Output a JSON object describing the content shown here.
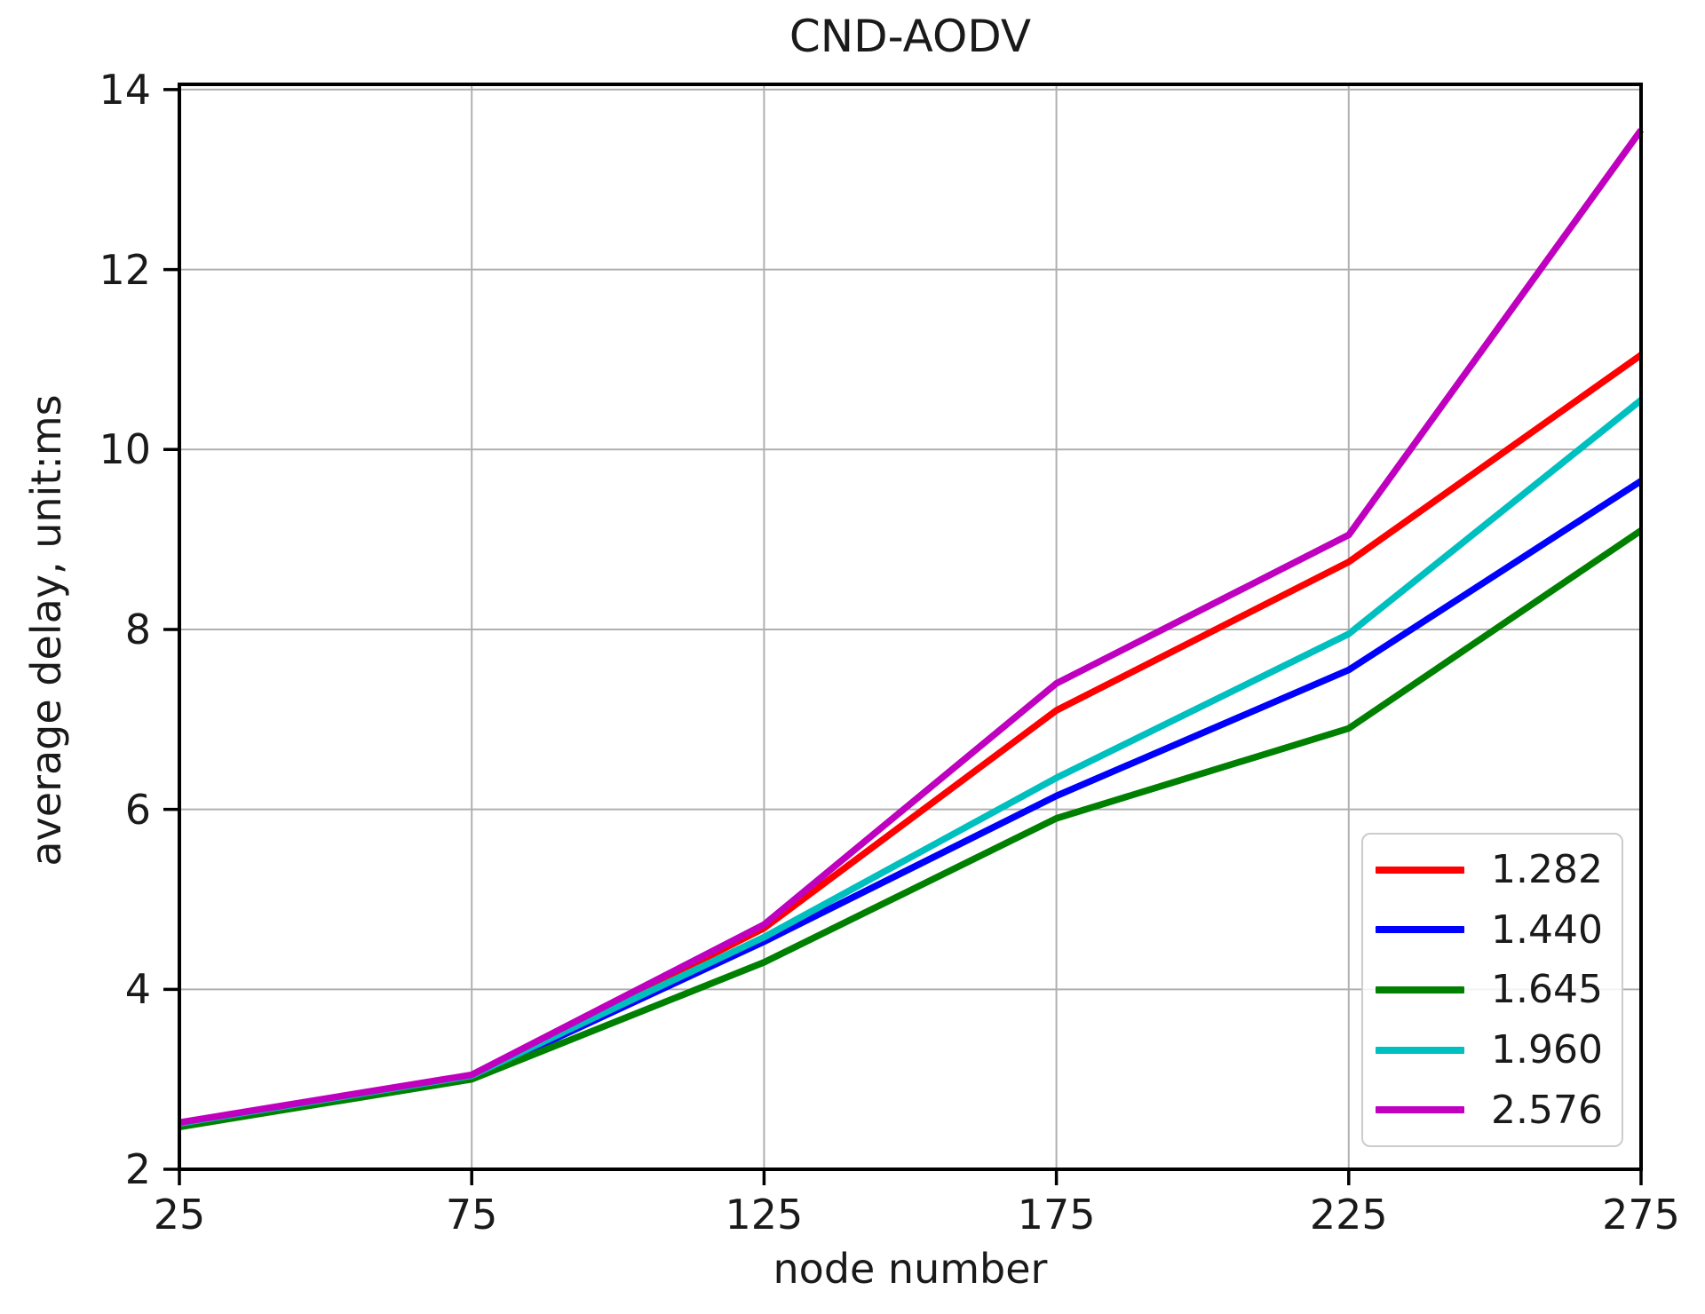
{
  "title": "CND-AODV",
  "axes": {
    "xlabel": "node number",
    "ylabel": "average delay, unit:ms",
    "xlim": [
      25,
      275
    ],
    "ylim": [
      2,
      14.058
    ],
    "xticks": [
      25,
      75,
      125,
      175,
      225,
      275
    ],
    "yticks": [
      2,
      4,
      6,
      8,
      10,
      12,
      14
    ],
    "grid": true
  },
  "style": {
    "grid_color": "#b0b0b0",
    "spine_color": "#000000",
    "text_color": "#1a1a1a",
    "legend_border_color": "#cccccc"
  },
  "chart_data": {
    "type": "line",
    "title": "CND-AODV",
    "xlabel": "node number",
    "ylabel": "average delay, unit:ms",
    "x": [
      25,
      75,
      125,
      175,
      225,
      275
    ],
    "series": [
      {
        "name": "1.282",
        "color": "#ff0000",
        "values": [
          2.5,
          3.03,
          4.68,
          7.1,
          8.75,
          11.05
        ]
      },
      {
        "name": "1.440",
        "color": "#0000ff",
        "values": [
          2.49,
          3.02,
          4.53,
          6.15,
          7.55,
          9.65
        ]
      },
      {
        "name": "1.645",
        "color": "#008000",
        "values": [
          2.47,
          3.0,
          4.3,
          5.9,
          6.9,
          9.1
        ]
      },
      {
        "name": "1.960",
        "color": "#00bfbf",
        "values": [
          2.51,
          3.04,
          4.58,
          6.35,
          7.95,
          10.55
        ]
      },
      {
        "name": "2.576",
        "color": "#bf00bf",
        "values": [
          2.52,
          3.05,
          4.72,
          7.4,
          9.05,
          13.55
        ]
      }
    ],
    "xlim": [
      25,
      275
    ],
    "ylim": [
      2,
      14
    ],
    "legend_position": "lower right",
    "grid": true
  }
}
